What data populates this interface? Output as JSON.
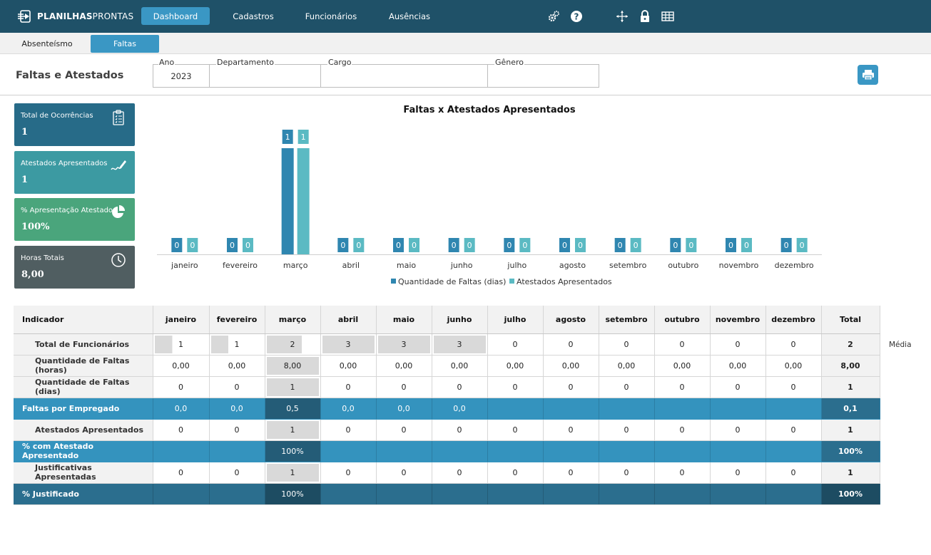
{
  "app": {
    "logo_text_bold": "PLANILHAS",
    "logo_text_thin": "PRONTAS"
  },
  "nav": {
    "items": [
      {
        "label": "Dashboard",
        "active": true
      },
      {
        "label": "Cadastros",
        "active": false
      },
      {
        "label": "Funcionários",
        "active": false
      },
      {
        "label": "Ausências",
        "active": false
      }
    ],
    "icons": [
      "settings-icon",
      "help-icon",
      "move-icon",
      "lock-icon",
      "grid-icon"
    ]
  },
  "subtabs": [
    {
      "label": "Absenteísmo",
      "active": false
    },
    {
      "label": "Faltas",
      "active": true
    }
  ],
  "page": {
    "title": "Faltas e Atestados"
  },
  "filters": {
    "ano": {
      "label": "Ano",
      "value": "2023"
    },
    "departamento": {
      "label": "Departamento",
      "value": ""
    },
    "cargo": {
      "label": "Cargo",
      "value": ""
    },
    "genero": {
      "label": "Gênero",
      "value": ""
    }
  },
  "kpis": [
    {
      "label": "Total de Ocorrências",
      "value": "1",
      "icon": "clipboard-icon",
      "color": "#276b88"
    },
    {
      "label": "Atestados Apresentados",
      "value": "1",
      "icon": "signature-icon",
      "color": "#3c9aa2"
    },
    {
      "label": "% Apresentação Atestado",
      "value": "100%",
      "icon": "pie-chart-icon",
      "color": "#4aa57c"
    },
    {
      "label": "Horas Totais",
      "value": "8,00",
      "icon": "clock-icon",
      "color": "#505e61"
    }
  ],
  "chart_data": {
    "type": "bar",
    "title": "Faltas x Atestados Apresentados",
    "categories": [
      "janeiro",
      "fevereiro",
      "março",
      "abril",
      "maio",
      "junho",
      "julho",
      "agosto",
      "setembro",
      "outubro",
      "novembro",
      "dezembro"
    ],
    "series": [
      {
        "name": "Quantidade de Faltas (dias)",
        "color": "#2f86b0",
        "values": [
          0,
          0,
          1,
          0,
          0,
          0,
          0,
          0,
          0,
          0,
          0,
          0
        ]
      },
      {
        "name": "Atestados Apresentados",
        "color": "#5bbac3",
        "values": [
          0,
          0,
          1,
          0,
          0,
          0,
          0,
          0,
          0,
          0,
          0,
          0
        ]
      }
    ],
    "ylim": [
      0,
      1
    ],
    "legend": "bottom",
    "data_labels": true,
    "grid": false
  },
  "table": {
    "headers": [
      "Indicador",
      "janeiro",
      "fevereiro",
      "março",
      "abril",
      "maio",
      "junho",
      "julho",
      "agosto",
      "setembro",
      "outubro",
      "novembro",
      "dezembro",
      "Total"
    ],
    "media_label": "Média",
    "rows": [
      {
        "label": "Total de Funcionários",
        "values": [
          "1",
          "1",
          "2",
          "3",
          "3",
          "3",
          "0",
          "0",
          "0",
          "0",
          "0",
          "0"
        ],
        "total": "2"
      },
      {
        "label": "Quantidade de Faltas (horas)",
        "values": [
          "0,00",
          "0,00",
          "8,00",
          "0,00",
          "0,00",
          "0,00",
          "0,00",
          "0,00",
          "0,00",
          "0,00",
          "0,00",
          "0,00"
        ],
        "total": "8,00"
      },
      {
        "label": "Quantidade de Faltas (dias)",
        "values": [
          "0",
          "0",
          "1",
          "0",
          "0",
          "0",
          "0",
          "0",
          "0",
          "0",
          "0",
          "0"
        ],
        "total": "1"
      },
      {
        "label": "Faltas por Empregado",
        "values": [
          "0,0",
          "0,0",
          "0,5",
          "0,0",
          "0,0",
          "0,0",
          "",
          "",
          "",
          "",
          "",
          ""
        ],
        "total": "0,1"
      },
      {
        "label": "Atestados Apresentados",
        "values": [
          "0",
          "0",
          "1",
          "0",
          "0",
          "0",
          "0",
          "0",
          "0",
          "0",
          "0",
          "0"
        ],
        "total": "1"
      },
      {
        "label": "% com Atestado Apresentado",
        "values": [
          "",
          "",
          "100%",
          "",
          "",
          "",
          "",
          "",
          "",
          "",
          "",
          ""
        ],
        "total": "100%"
      },
      {
        "label": "Justificativas Apresentadas",
        "values": [
          "0",
          "0",
          "1",
          "0",
          "0",
          "0",
          "0",
          "0",
          "0",
          "0",
          "0",
          "0"
        ],
        "total": "1"
      },
      {
        "label": "% Justificado",
        "values": [
          "",
          "",
          "100%",
          "",
          "",
          "",
          "",
          "",
          "",
          "",
          "",
          ""
        ],
        "total": "100%"
      }
    ]
  }
}
